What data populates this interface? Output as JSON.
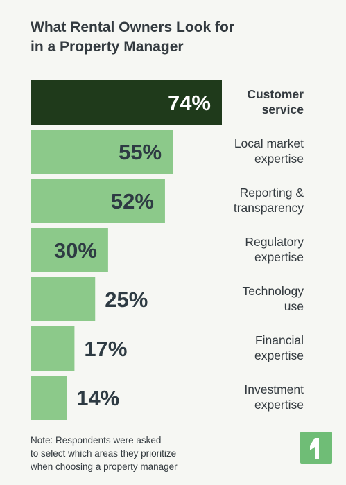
{
  "title_lines": [
    "What Rental Owners Look for",
    "in a Property Manager"
  ],
  "note_lines": [
    "Note: Respondents were asked",
    "to select which areas they prioritize",
    "when choosing a property manager"
  ],
  "colors": {
    "highlight_bar": "#1f3a1b",
    "bar": "#8cc98a",
    "label_on_dark": "#ffffff",
    "label_on_light": "#2e3b43",
    "category_text": "#333a3f",
    "logo": "#6fbd76"
  },
  "logo_icon": "brand-mark-icon",
  "chart_data": {
    "type": "bar",
    "orientation": "horizontal",
    "title": "What Rental Owners Look for in a Property Manager",
    "categories": [
      [
        "Customer",
        "service"
      ],
      [
        "Local market",
        "expertise"
      ],
      [
        "Reporting &",
        "transparency"
      ],
      [
        "Regulatory",
        "expertise"
      ],
      [
        "Technology",
        "use"
      ],
      [
        "Financial",
        "expertise"
      ],
      [
        "Investment",
        "expertise"
      ]
    ],
    "values": [
      74,
      55,
      52,
      30,
      25,
      17,
      14
    ],
    "value_labels": [
      "74%",
      "55%",
      "52%",
      "30%",
      "25%",
      "17%",
      "14%"
    ],
    "highlight_index": 0,
    "xlim": [
      0,
      100
    ],
    "unit": "%",
    "grid": false,
    "legend": "none"
  }
}
